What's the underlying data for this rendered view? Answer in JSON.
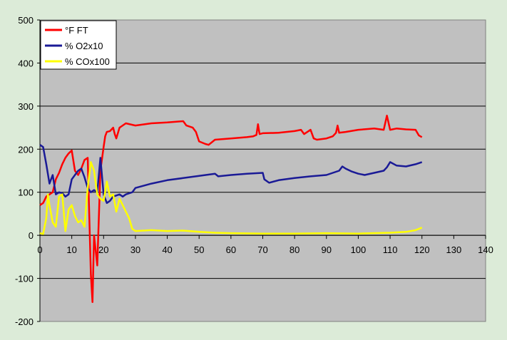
{
  "chart_data": {
    "type": "line",
    "title": "",
    "xlabel": "",
    "ylabel": "",
    "xlim": [
      0,
      140
    ],
    "ylim": [
      -200,
      500
    ],
    "x_ticks": [
      0,
      10,
      20,
      30,
      40,
      50,
      60,
      70,
      80,
      90,
      100,
      110,
      120,
      130,
      140
    ],
    "y_ticks": [
      -200,
      -100,
      0,
      100,
      200,
      300,
      400,
      500
    ],
    "grid": "horizontal",
    "legend_position": "top-left",
    "plot_background": "#c0c0c0",
    "series": [
      {
        "name": "°F FT",
        "color": "#ff0000",
        "points": [
          [
            0,
            70
          ],
          [
            1,
            75
          ],
          [
            2,
            90
          ],
          [
            3,
            95
          ],
          [
            4,
            100
          ],
          [
            5,
            130
          ],
          [
            6,
            145
          ],
          [
            7,
            165
          ],
          [
            8,
            180
          ],
          [
            9,
            190
          ],
          [
            10,
            197
          ],
          [
            11,
            150
          ],
          [
            12,
            140
          ],
          [
            13,
            155
          ],
          [
            14,
            175
          ],
          [
            15,
            180
          ],
          [
            16,
            -90
          ],
          [
            16.5,
            -155
          ],
          [
            17,
            0
          ],
          [
            18,
            -70
          ],
          [
            19,
            150
          ],
          [
            20,
            205
          ],
          [
            20.5,
            230
          ],
          [
            21,
            240
          ],
          [
            22,
            242
          ],
          [
            23,
            250
          ],
          [
            23.5,
            235
          ],
          [
            24,
            225
          ],
          [
            25,
            250
          ],
          [
            27,
            260
          ],
          [
            30,
            255
          ],
          [
            35,
            260
          ],
          [
            40,
            262
          ],
          [
            45,
            265
          ],
          [
            46,
            255
          ],
          [
            48,
            250
          ],
          [
            49,
            240
          ],
          [
            50,
            218
          ],
          [
            52,
            212
          ],
          [
            53,
            210
          ],
          [
            55,
            222
          ],
          [
            60,
            225
          ],
          [
            65,
            228
          ],
          [
            67,
            230
          ],
          [
            68,
            233
          ],
          [
            68.5,
            258
          ],
          [
            69,
            235
          ],
          [
            70,
            237
          ],
          [
            75,
            238
          ],
          [
            80,
            242
          ],
          [
            82,
            245
          ],
          [
            83,
            235
          ],
          [
            85,
            245
          ],
          [
            86,
            225
          ],
          [
            87,
            222
          ],
          [
            90,
            225
          ],
          [
            92,
            230
          ],
          [
            93,
            238
          ],
          [
            93.5,
            255
          ],
          [
            94,
            238
          ],
          [
            96,
            240
          ],
          [
            100,
            245
          ],
          [
            105,
            248
          ],
          [
            108,
            245
          ],
          [
            109,
            278
          ],
          [
            110,
            245
          ],
          [
            112,
            248
          ],
          [
            115,
            246
          ],
          [
            118,
            245
          ],
          [
            119,
            232
          ],
          [
            120,
            228
          ]
        ]
      },
      {
        "name": "% O2x10",
        "color": "#1a1a96",
        "points": [
          [
            0,
            210
          ],
          [
            1,
            205
          ],
          [
            2,
            165
          ],
          [
            3,
            120
          ],
          [
            3.5,
            130
          ],
          [
            4,
            140
          ],
          [
            5,
            95
          ],
          [
            6,
            100
          ],
          [
            7,
            98
          ],
          [
            8,
            90
          ],
          [
            9,
            95
          ],
          [
            10,
            130
          ],
          [
            11,
            140
          ],
          [
            12,
            150
          ],
          [
            13,
            155
          ],
          [
            14,
            135
          ],
          [
            15,
            110
          ],
          [
            16,
            100
          ],
          [
            17,
            105
          ],
          [
            18,
            100
          ],
          [
            19,
            180
          ],
          [
            20,
            95
          ],
          [
            21,
            75
          ],
          [
            22,
            80
          ],
          [
            23,
            90
          ],
          [
            25,
            95
          ],
          [
            26,
            90
          ],
          [
            27,
            95
          ],
          [
            29,
            100
          ],
          [
            30,
            110
          ],
          [
            35,
            120
          ],
          [
            40,
            128
          ],
          [
            45,
            133
          ],
          [
            50,
            138
          ],
          [
            55,
            143
          ],
          [
            56,
            137
          ],
          [
            60,
            140
          ],
          [
            65,
            143
          ],
          [
            70,
            145
          ],
          [
            70.5,
            130
          ],
          [
            72,
            122
          ],
          [
            75,
            128
          ],
          [
            80,
            133
          ],
          [
            85,
            137
          ],
          [
            90,
            140
          ],
          [
            92,
            145
          ],
          [
            94,
            150
          ],
          [
            95,
            160
          ],
          [
            96,
            155
          ],
          [
            98,
            148
          ],
          [
            100,
            143
          ],
          [
            102,
            140
          ],
          [
            105,
            145
          ],
          [
            108,
            150
          ],
          [
            109,
            158
          ],
          [
            110,
            170
          ],
          [
            112,
            162
          ],
          [
            115,
            160
          ],
          [
            118,
            165
          ],
          [
            120,
            170
          ]
        ]
      },
      {
        "name": "% COx100",
        "color": "#ffff00",
        "points": [
          [
            0,
            5
          ],
          [
            1,
            3
          ],
          [
            2,
            40
          ],
          [
            2.5,
            95
          ],
          [
            3,
            70
          ],
          [
            4,
            30
          ],
          [
            5,
            20
          ],
          [
            6,
            90
          ],
          [
            7,
            95
          ],
          [
            8,
            10
          ],
          [
            9,
            60
          ],
          [
            10,
            70
          ],
          [
            11,
            45
          ],
          [
            12,
            30
          ],
          [
            13,
            35
          ],
          [
            14,
            20
          ],
          [
            15,
            110
          ],
          [
            16,
            170
          ],
          [
            17,
            150
          ],
          [
            18,
            95
          ],
          [
            19,
            85
          ],
          [
            20,
            80
          ],
          [
            21,
            125
          ],
          [
            22,
            90
          ],
          [
            23,
            95
          ],
          [
            24,
            55
          ],
          [
            25,
            85
          ],
          [
            26,
            70
          ],
          [
            27,
            55
          ],
          [
            28,
            40
          ],
          [
            29,
            15
          ],
          [
            30,
            10
          ],
          [
            35,
            12
          ],
          [
            40,
            10
          ],
          [
            45,
            11
          ],
          [
            50,
            8
          ],
          [
            55,
            6
          ],
          [
            60,
            5
          ],
          [
            70,
            4
          ],
          [
            80,
            4
          ],
          [
            90,
            5
          ],
          [
            100,
            4
          ],
          [
            110,
            6
          ],
          [
            115,
            8
          ],
          [
            118,
            12
          ],
          [
            120,
            18
          ]
        ]
      }
    ]
  }
}
